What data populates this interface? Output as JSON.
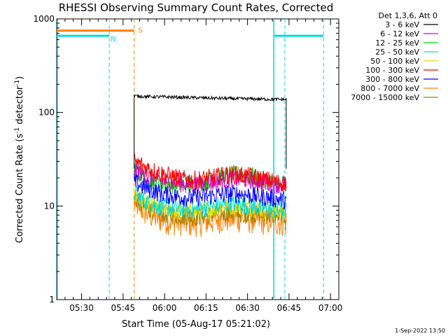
{
  "chart_data": {
    "type": "line",
    "title": "RHESSI Observing Summary Count Rates, Corrected",
    "xlabel": "Start Time (05-Aug-17 05:21:02)",
    "ylabel_parts": {
      "base": "Corrected Count Rate (s",
      "sup1": "-1",
      "mid": " detector",
      "sup2": "-1",
      "end": ")"
    },
    "yscale": "log",
    "ylim": [
      1,
      1000
    ],
    "xlim_minutes": [
      0,
      102
    ],
    "x_tick_labels": [
      "05:30",
      "05:45",
      "06:00",
      "06:15",
      "06:30",
      "06:45",
      "07:00"
    ],
    "x_tick_minutes": [
      9,
      24,
      39,
      54,
      69,
      84,
      99
    ],
    "y_tick_labels": [
      "1",
      "10",
      "100",
      "1000"
    ],
    "y_tick_values": [
      1,
      10,
      100,
      1000
    ],
    "legend_title": "Det 1,3,6, Att 0",
    "series": [
      {
        "name": "3 - 6 keV",
        "color": "#000000",
        "values": [
          150,
          148,
          147,
          146,
          145,
          144,
          143,
          142,
          141,
          140,
          140,
          139,
          138,
          138
        ]
      },
      {
        "name": "6 - 12 keV",
        "color": "#d000d0",
        "values": [
          25,
          21,
          19,
          18,
          17.5,
          17,
          17.5,
          18.5,
          19.5,
          19.5,
          19,
          18,
          17,
          17
        ]
      },
      {
        "name": "12 - 25 keV",
        "color": "#00d000",
        "values": [
          24,
          20,
          18,
          17,
          17,
          17,
          18,
          20,
          21.5,
          21.5,
          21,
          19,
          17.5,
          17
        ]
      },
      {
        "name": "25 - 50 keV",
        "color": "#00dddd",
        "values": [
          14,
          11,
          10,
          9.5,
          9.2,
          9,
          9.5,
          10,
          10.5,
          10.5,
          10,
          9.5,
          9,
          9
        ]
      },
      {
        "name": "50 - 100 keV",
        "color": "#e0e000",
        "values": [
          13,
          10.5,
          9.5,
          9,
          8.8,
          8.6,
          9,
          9.5,
          10,
          10,
          9.6,
          9.2,
          8.8,
          8.7
        ]
      },
      {
        "name": "100 - 300 keV",
        "color": "#ff0000",
        "values": [
          30,
          26,
          23,
          21,
          19.5,
          19,
          19.5,
          20.5,
          21.5,
          21.5,
          20.5,
          19.5,
          18,
          17.5
        ]
      },
      {
        "name": "300 - 800 keV",
        "color": "#0000ff",
        "values": [
          18,
          15.5,
          14,
          13,
          12.5,
          12.2,
          12.5,
          13,
          13.5,
          13.5,
          13,
          12.5,
          12,
          11.5
        ]
      },
      {
        "name": "800 - 7000 keV",
        "color": "#ff8000",
        "values": [
          11,
          8.5,
          7.5,
          7,
          6.8,
          6.6,
          6.8,
          7.2,
          7.4,
          7.4,
          7.2,
          7,
          6.8,
          6.7
        ]
      },
      {
        "name": "7000 - 15000 keV",
        "color": "#a08000",
        "values": [
          12,
          9.5,
          8.5,
          8,
          7.8,
          7.6,
          7.8,
          8.2,
          8.4,
          8.4,
          8.2,
          8,
          7.8,
          7.7
        ]
      }
    ],
    "series_time_range_minutes": [
      28,
      83
    ],
    "annotation_s": "S",
    "annotation_n": "N",
    "attenuator_level": 750,
    "night_level": 660,
    "timestamp": "1-Sep-2022 13:50"
  }
}
